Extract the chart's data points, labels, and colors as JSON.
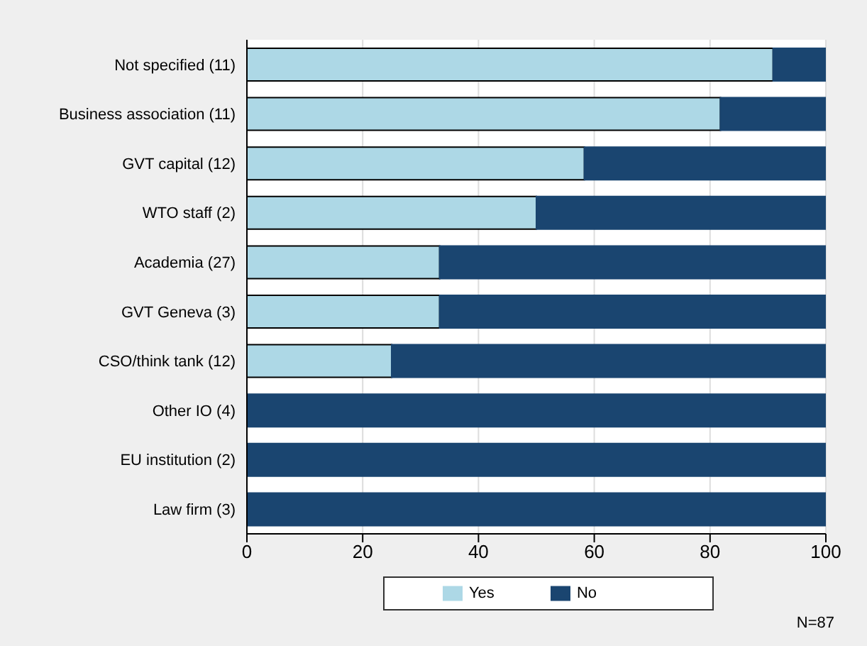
{
  "chart_data": {
    "type": "bar",
    "orientation": "horizontal",
    "stacked": true,
    "categories": [
      "Not specified (11)",
      "Business  association (11)",
      "GVT capital (12)",
      "WTO staff (2)",
      "Academia (27)",
      "GVT Geneva (3)",
      "CSO/think tank (12)",
      "Other IO (4)",
      "EU institution (2)",
      "Law firm (3)"
    ],
    "series": [
      {
        "name": "Yes",
        "color": "#add8e6",
        "values": [
          90.9,
          81.8,
          58.3,
          50,
          33.3,
          33.3,
          25,
          0,
          0,
          0
        ]
      },
      {
        "name": "No",
        "color": "#1a4570",
        "values": [
          9.1,
          18.2,
          41.7,
          50,
          66.7,
          66.7,
          75,
          100,
          100,
          100
        ]
      }
    ],
    "xlim": [
      0,
      100
    ],
    "xticks": [
      0,
      20,
      40,
      60,
      80,
      100
    ],
    "grid": "x",
    "legend": "bottom",
    "annotations": [
      "N=87"
    ]
  }
}
